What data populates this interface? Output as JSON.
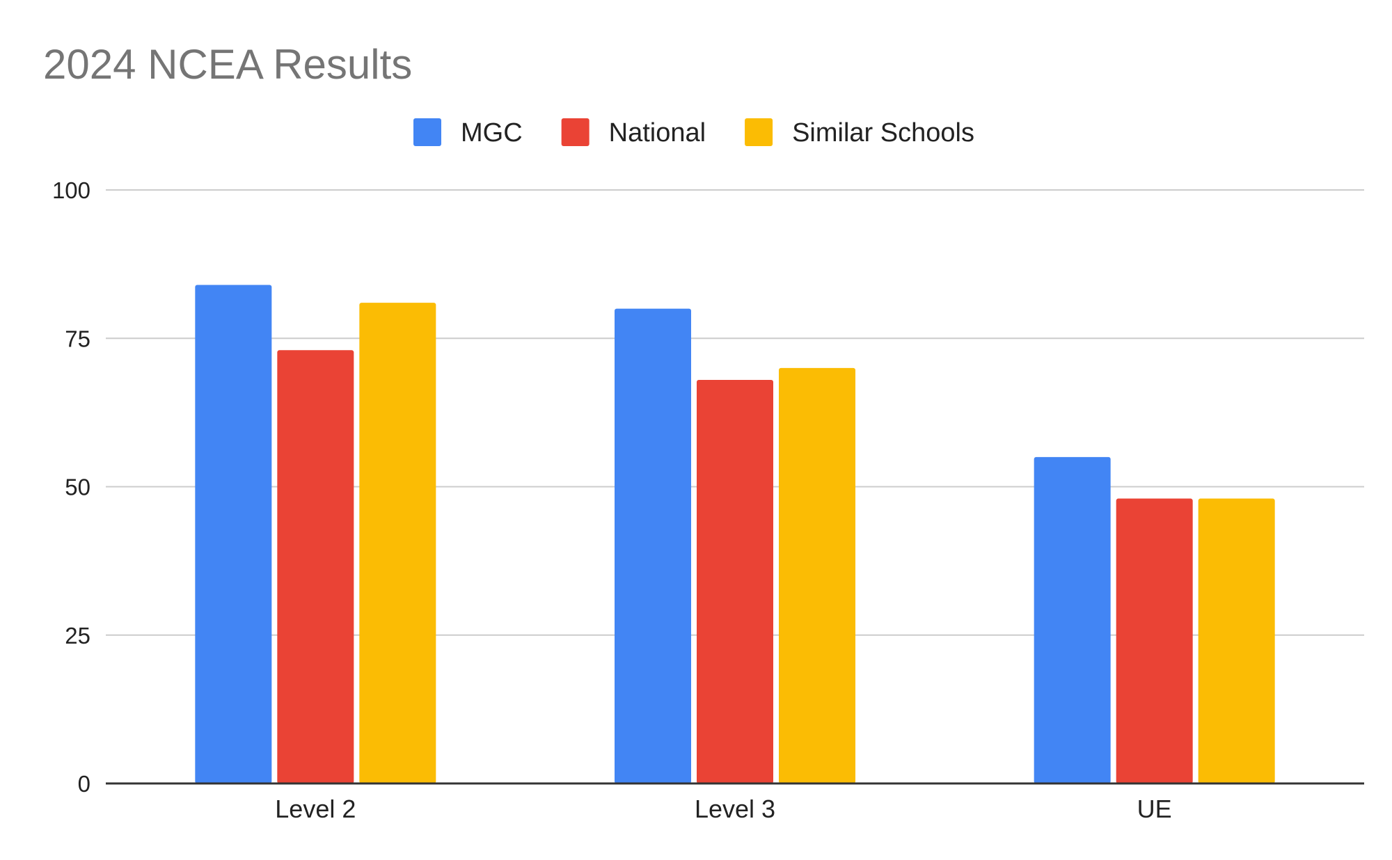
{
  "chart_data": {
    "type": "bar",
    "title": "2024 NCEA Results",
    "xlabel": "",
    "ylabel": "",
    "categories": [
      "Level 2",
      "Level 3",
      "UE"
    ],
    "series": [
      {
        "name": "MGC",
        "color": "#4285f4",
        "values": [
          84,
          80,
          55
        ]
      },
      {
        "name": "National",
        "color": "#ea4335",
        "values": [
          73,
          68,
          48
        ]
      },
      {
        "name": "Similar Schools",
        "color": "#fbbc04",
        "values": [
          81,
          70,
          48
        ]
      }
    ],
    "ylim": [
      0,
      100
    ],
    "yticks": [
      {
        "value": 0,
        "label": "0"
      },
      {
        "value": 25,
        "label": "25"
      },
      {
        "value": 50,
        "label": "50"
      },
      {
        "value": 75,
        "label": "75"
      },
      {
        "value": 100,
        "label": "100"
      }
    ],
    "grid": true,
    "legend_position": "top"
  }
}
